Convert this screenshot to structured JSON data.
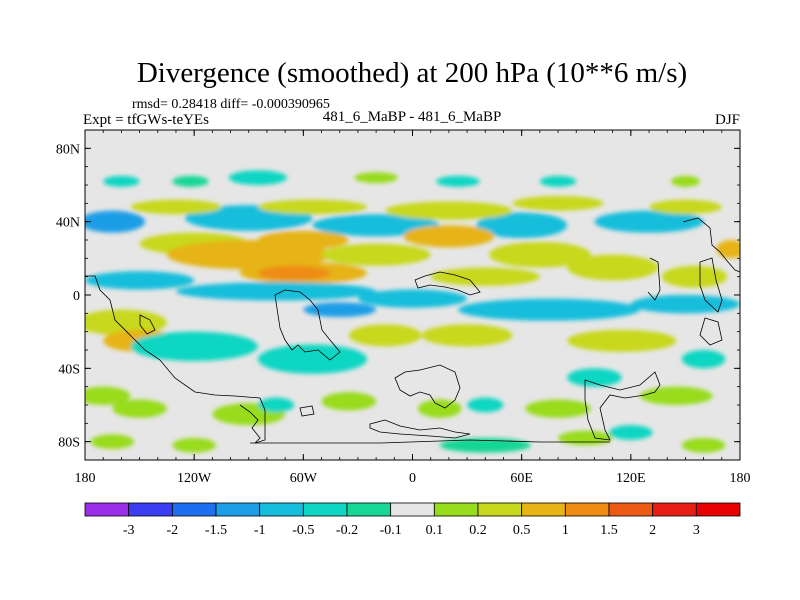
{
  "chart_data": {
    "type": "heatmap",
    "title": "Divergence (smoothed) at 200 hPa (10**6 m/s)",
    "stats": "rmsd= 0.28418 diff= -0.000390965",
    "experiment": "Expt = tfGWs-teYEs",
    "comparison": "481_6_MaBP - 481_6_MaBP",
    "season": "DJF",
    "x_ticks": [
      {
        "value": -180,
        "label": "180"
      },
      {
        "value": -120,
        "label": "120W"
      },
      {
        "value": -60,
        "label": "60W"
      },
      {
        "value": 0,
        "label": "0"
      },
      {
        "value": 60,
        "label": "60E"
      },
      {
        "value": 120,
        "label": "120E"
      },
      {
        "value": 180,
        "label": "180"
      }
    ],
    "y_ticks": [
      {
        "value": 80,
        "label": "80N"
      },
      {
        "value": 40,
        "label": "40N"
      },
      {
        "value": 0,
        "label": "0"
      },
      {
        "value": -40,
        "label": "40S"
      },
      {
        "value": -80,
        "label": "80S"
      }
    ],
    "xlim": [
      -180,
      180
    ],
    "ylim": [
      -90,
      90
    ],
    "colorbar": {
      "labels": [
        "-3",
        "-2",
        "-1.5",
        "-1",
        "-0.5",
        "-0.2",
        "-0.1",
        "0.1",
        "0.2",
        "0.5",
        "1",
        "1.5",
        "2",
        "3"
      ],
      "colors": [
        "#9b2ee8",
        "#3c3cf0",
        "#1e6ef0",
        "#1e9ee6",
        "#14bedc",
        "#0ed6c2",
        "#18d696",
        "#e6e6e6",
        "#98dc1e",
        "#c8d81e",
        "#e6b414",
        "#ee8c14",
        "#ec5a14",
        "#e61e14",
        "#e60000"
      ]
    },
    "field": [
      {
        "lon": -160,
        "lat": 62,
        "rx": 10,
        "ry": 3,
        "level": 5
      },
      {
        "lon": -122,
        "lat": 62,
        "rx": 10,
        "ry": 3,
        "level": 6
      },
      {
        "lon": -85,
        "lat": 64,
        "rx": 16,
        "ry": 4,
        "level": 5
      },
      {
        "lon": -20,
        "lat": 64,
        "rx": 12,
        "ry": 3,
        "level": 8
      },
      {
        "lon": 25,
        "lat": 62,
        "rx": 12,
        "ry": 3,
        "level": 5
      },
      {
        "lon": 80,
        "lat": 62,
        "rx": 10,
        "ry": 3,
        "level": 5
      },
      {
        "lon": 150,
        "lat": 62,
        "rx": 8,
        "ry": 3,
        "level": 8
      },
      {
        "lon": -165,
        "lat": 40,
        "rx": 18,
        "ry": 6,
        "level": 3
      },
      {
        "lon": -90,
        "lat": 42,
        "rx": 35,
        "ry": 7,
        "level": 4
      },
      {
        "lon": -20,
        "lat": 38,
        "rx": 35,
        "ry": 6,
        "level": 4
      },
      {
        "lon": 60,
        "lat": 38,
        "rx": 25,
        "ry": 7,
        "level": 4
      },
      {
        "lon": 130,
        "lat": 40,
        "rx": 30,
        "ry": 6,
        "level": 4
      },
      {
        "lon": -130,
        "lat": 48,
        "rx": 25,
        "ry": 4,
        "level": 9
      },
      {
        "lon": -55,
        "lat": 48,
        "rx": 30,
        "ry": 4,
        "level": 9
      },
      {
        "lon": 20,
        "lat": 46,
        "rx": 35,
        "ry": 5,
        "level": 9
      },
      {
        "lon": 80,
        "lat": 50,
        "rx": 25,
        "ry": 4,
        "level": 9
      },
      {
        "lon": 150,
        "lat": 48,
        "rx": 20,
        "ry": 4,
        "level": 9
      },
      {
        "lon": -120,
        "lat": 28,
        "rx": 30,
        "ry": 6,
        "level": 9
      },
      {
        "lon": -90,
        "lat": 22,
        "rx": 45,
        "ry": 8,
        "level": 10
      },
      {
        "lon": -60,
        "lat": 30,
        "rx": 25,
        "ry": 5,
        "level": 10
      },
      {
        "lon": -60,
        "lat": 12,
        "rx": 35,
        "ry": 6,
        "level": 10
      },
      {
        "lon": -65,
        "lat": 12,
        "rx": 20,
        "ry": 4,
        "level": 11
      },
      {
        "lon": -20,
        "lat": 22,
        "rx": 30,
        "ry": 6,
        "level": 9
      },
      {
        "lon": 20,
        "lat": 32,
        "rx": 25,
        "ry": 6,
        "level": 10
      },
      {
        "lon": 40,
        "lat": 10,
        "rx": 30,
        "ry": 5,
        "level": 9
      },
      {
        "lon": 70,
        "lat": 22,
        "rx": 28,
        "ry": 7,
        "level": 9
      },
      {
        "lon": 110,
        "lat": 15,
        "rx": 25,
        "ry": 7,
        "level": 9
      },
      {
        "lon": 155,
        "lat": 10,
        "rx": 18,
        "ry": 6,
        "level": 9
      },
      {
        "lon": 175,
        "lat": 25,
        "rx": 8,
        "ry": 5,
        "level": 10
      },
      {
        "lon": -150,
        "lat": 8,
        "rx": 30,
        "ry": 5,
        "level": 4
      },
      {
        "lon": -75,
        "lat": 2,
        "rx": 55,
        "ry": 5,
        "level": 4
      },
      {
        "lon": 0,
        "lat": -2,
        "rx": 30,
        "ry": 5,
        "level": 4
      },
      {
        "lon": 75,
        "lat": -8,
        "rx": 50,
        "ry": 6,
        "level": 4
      },
      {
        "lon": 150,
        "lat": -5,
        "rx": 30,
        "ry": 5,
        "level": 4
      },
      {
        "lon": -40,
        "lat": -8,
        "rx": 20,
        "ry": 4,
        "level": 3
      },
      {
        "lon": -160,
        "lat": -15,
        "rx": 25,
        "ry": 7,
        "level": 9
      },
      {
        "lon": -150,
        "lat": -25,
        "rx": 20,
        "ry": 6,
        "level": 10
      },
      {
        "lon": -15,
        "lat": -22,
        "rx": 20,
        "ry": 6,
        "level": 9
      },
      {
        "lon": 30,
        "lat": -22,
        "rx": 25,
        "ry": 6,
        "level": 9
      },
      {
        "lon": 115,
        "lat": -25,
        "rx": 30,
        "ry": 6,
        "level": 9
      },
      {
        "lon": -120,
        "lat": -28,
        "rx": 35,
        "ry": 8,
        "level": 5
      },
      {
        "lon": -55,
        "lat": -35,
        "rx": 30,
        "ry": 8,
        "level": 5
      },
      {
        "lon": 100,
        "lat": -45,
        "rx": 15,
        "ry": 5,
        "level": 5
      },
      {
        "lon": 160,
        "lat": -35,
        "rx": 12,
        "ry": 5,
        "level": 5
      },
      {
        "lon": -170,
        "lat": -55,
        "rx": 15,
        "ry": 5,
        "level": 8
      },
      {
        "lon": -150,
        "lat": -62,
        "rx": 15,
        "ry": 5,
        "level": 8
      },
      {
        "lon": -90,
        "lat": -65,
        "rx": 20,
        "ry": 6,
        "level": 8
      },
      {
        "lon": -35,
        "lat": -58,
        "rx": 15,
        "ry": 5,
        "level": 8
      },
      {
        "lon": 15,
        "lat": -62,
        "rx": 12,
        "ry": 5,
        "level": 8
      },
      {
        "lon": 80,
        "lat": -62,
        "rx": 18,
        "ry": 5,
        "level": 8
      },
      {
        "lon": 145,
        "lat": -55,
        "rx": 20,
        "ry": 5,
        "level": 8
      },
      {
        "lon": -75,
        "lat": -60,
        "rx": 10,
        "ry": 4,
        "level": 5
      },
      {
        "lon": 40,
        "lat": -60,
        "rx": 10,
        "ry": 4,
        "level": 5
      },
      {
        "lon": 120,
        "lat": -75,
        "rx": 12,
        "ry": 4,
        "level": 5
      },
      {
        "lon": -165,
        "lat": -80,
        "rx": 12,
        "ry": 4,
        "level": 8
      },
      {
        "lon": -120,
        "lat": -82,
        "rx": 12,
        "ry": 4,
        "level": 8
      },
      {
        "lon": 40,
        "lat": -82,
        "rx": 25,
        "ry": 4,
        "level": 6
      },
      {
        "lon": 95,
        "lat": -78,
        "rx": 15,
        "ry": 4,
        "level": 8
      },
      {
        "lon": 160,
        "lat": -82,
        "rx": 12,
        "ry": 4,
        "level": 8
      }
    ]
  }
}
